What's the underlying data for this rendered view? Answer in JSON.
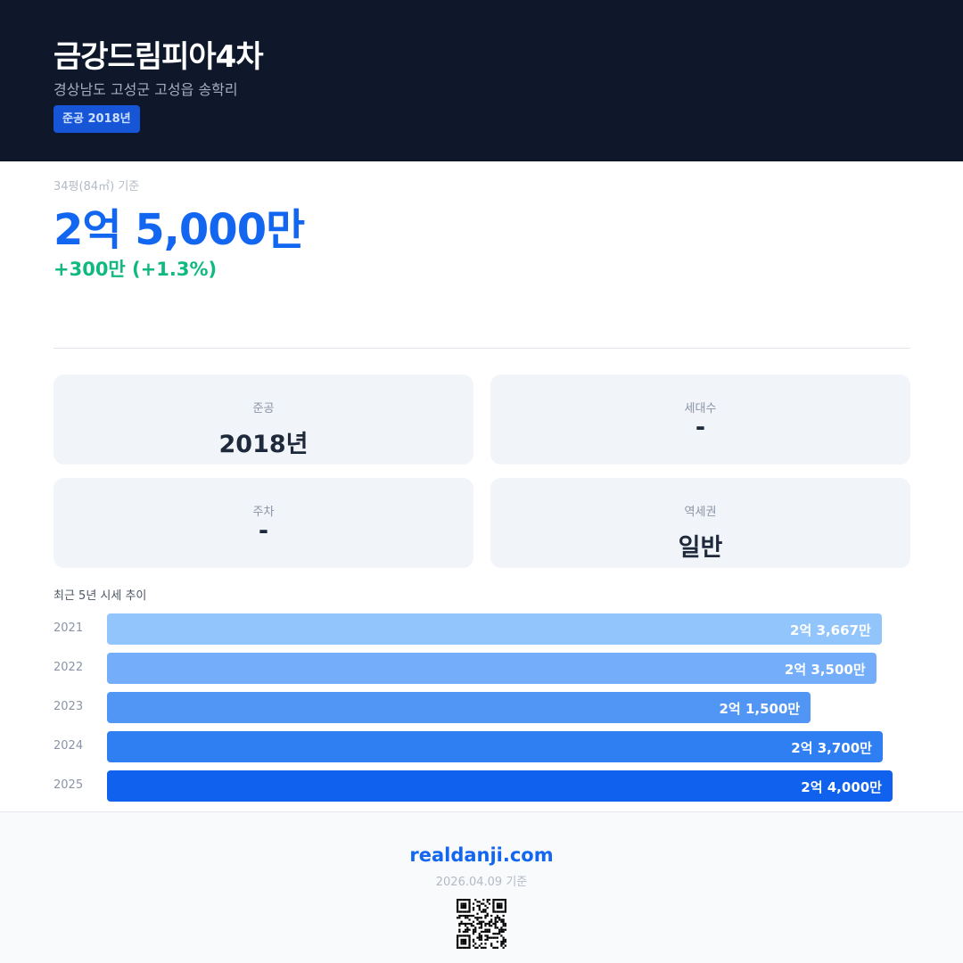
{
  "header": {
    "title": "금강드림피아4차",
    "address": "경상남도 고성군 고성읍 송학리",
    "badge": "준공 2018년"
  },
  "price": {
    "basis": "34평(84㎡) 기준",
    "value": "2억 5,000만",
    "change": "+300만 (+1.3%)"
  },
  "stats": [
    {
      "label": "준공",
      "value": "2018년"
    },
    {
      "label": "세대수",
      "value": "-"
    },
    {
      "label": "주차",
      "value": "-"
    },
    {
      "label": "역세권",
      "value": "일반"
    }
  ],
  "chart_data": {
    "type": "bar",
    "orientation": "horizontal",
    "title": "최근 5년 시세 추이",
    "categories": [
      "2021",
      "2022",
      "2023",
      "2024",
      "2025"
    ],
    "values": [
      23667,
      23500,
      21500,
      23700,
      24000
    ],
    "labels": [
      "2억 3,667만",
      "2억 3,500만",
      "2억 1,500만",
      "2억 3,700만",
      "2억 4,000만"
    ],
    "unit": "만원",
    "colors": [
      "#93c5fd",
      "#74adf9",
      "#5296f5",
      "#2f7ef2",
      "#1062ee"
    ]
  },
  "footer": {
    "site": "realdanji.com",
    "date": "2026.04.09 기준"
  }
}
